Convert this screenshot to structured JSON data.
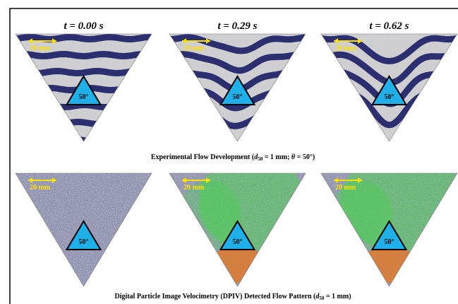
{
  "top_panels": [
    {
      "time": "t = 0.00 s",
      "scale": "20 mm",
      "angle": "50°"
    },
    {
      "time": "t = 0.29 s",
      "scale": "20 mm",
      "angle": "50°"
    },
    {
      "time": "t = 0.62 s",
      "scale": "20 mm",
      "angle": "50°"
    }
  ],
  "top_caption": [
    "Experimental Flow Development (",
    "d",
    "50",
    " = 1 mm; ",
    "θ",
    " = 50°)"
  ],
  "bottom_panels": [
    {
      "scale": "20 mm",
      "angle": "50°"
    },
    {
      "scale": "20 mm",
      "angle": "50°"
    },
    {
      "scale": "20 mm",
      "angle": "50°"
    }
  ],
  "bottom_caption": [
    "Digital Particle Image Velocimetry (DPIV) Detected Flow Pattern (",
    "d",
    "50",
    " = 1 mm)"
  ]
}
